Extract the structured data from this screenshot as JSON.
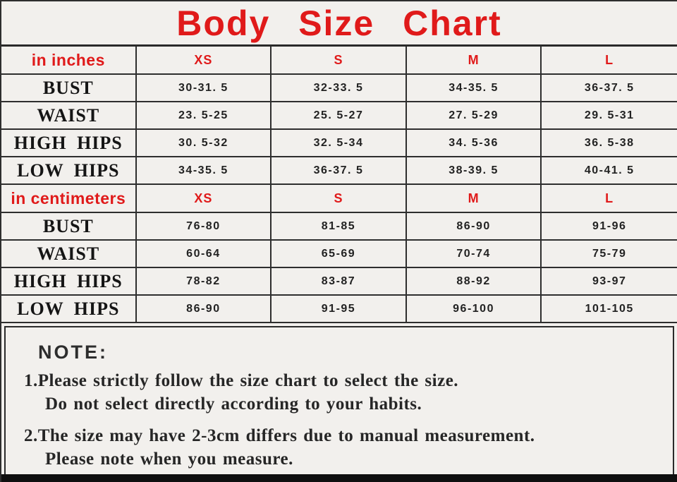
{
  "title": "Body Size Chart",
  "colors": {
    "accent_red": "#e01a1a",
    "grid_line": "#2e2e2e",
    "background": "#f2f0ed",
    "text_dark": "#262626",
    "bottom_bar": "#0f0f0f"
  },
  "sections": [
    {
      "unit_label": "in inches",
      "size_headers": [
        "XS",
        "S",
        "M",
        "L"
      ],
      "rows": [
        {
          "label": "BUST",
          "values": [
            "30-31. 5",
            "32-33. 5",
            "34-35. 5",
            "36-37. 5"
          ]
        },
        {
          "label": "WAIST",
          "values": [
            "23. 5-25",
            "25. 5-27",
            "27. 5-29",
            "29. 5-31"
          ]
        },
        {
          "label": "HIGH HIPS",
          "values": [
            "30. 5-32",
            "32. 5-34",
            "34. 5-36",
            "36. 5-38"
          ]
        },
        {
          "label": "LOW HIPS",
          "values": [
            "34-35. 5",
            "36-37. 5",
            "38-39. 5",
            "40-41. 5"
          ]
        }
      ]
    },
    {
      "unit_label": "in centimeters",
      "size_headers": [
        "XS",
        "S",
        "M",
        "L"
      ],
      "rows": [
        {
          "label": "BUST",
          "values": [
            "76-80",
            "81-85",
            "86-90",
            "91-96"
          ]
        },
        {
          "label": "WAIST",
          "values": [
            "60-64",
            "65-69",
            "70-74",
            "75-79"
          ]
        },
        {
          "label": "HIGH HIPS",
          "values": [
            "78-82",
            "83-87",
            "88-92",
            "93-97"
          ]
        },
        {
          "label": "LOW HIPS",
          "values": [
            "86-90",
            "91-95",
            "96-100",
            "101-105"
          ]
        }
      ]
    }
  ],
  "note": {
    "heading": "NOTE:",
    "items": [
      {
        "line1": "1.Please strictly follow the size chart to select the size.",
        "line2": "Do not select directly according to your habits."
      },
      {
        "line1": "2.The size may have 2-3cm differs due to manual measurement.",
        "line2": "Please note when you measure."
      }
    ]
  }
}
